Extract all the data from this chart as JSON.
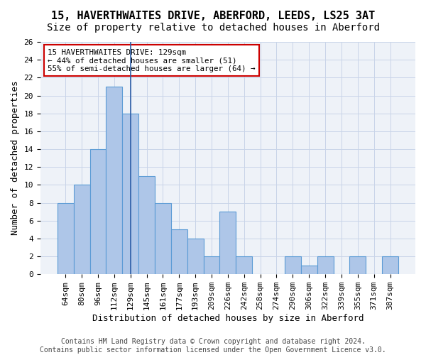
{
  "title1": "15, HAVERTHWAITES DRIVE, ABERFORD, LEEDS, LS25 3AT",
  "title2": "Size of property relative to detached houses in Aberford",
  "xlabel": "Distribution of detached houses by size in Aberford",
  "ylabel": "Number of detached properties",
  "bins": [
    "64sqm",
    "80sqm",
    "96sqm",
    "112sqm",
    "129sqm",
    "145sqm",
    "161sqm",
    "177sqm",
    "193sqm",
    "209sqm",
    "226sqm",
    "242sqm",
    "258sqm",
    "274sqm",
    "290sqm",
    "306sqm",
    "322sqm",
    "339sqm",
    "355sqm",
    "371sqm",
    "387sqm"
  ],
  "values": [
    8,
    10,
    14,
    21,
    18,
    11,
    8,
    5,
    4,
    2,
    7,
    2,
    0,
    0,
    2,
    1,
    2,
    0,
    2,
    0,
    2
  ],
  "bar_color": "#aec6e8",
  "bar_edge_color": "#5b9bd5",
  "highlight_line_x_label": "129sqm",
  "highlight_line_color": "#2b5ca6",
  "annotation_text": "15 HAVERTHWAITES DRIVE: 129sqm\n← 44% of detached houses are smaller (51)\n55% of semi-detached houses are larger (64) →",
  "annotation_box_color": "#ffffff",
  "annotation_box_edge_color": "#cc0000",
  "ylim": [
    0,
    26
  ],
  "yticks": [
    0,
    2,
    4,
    6,
    8,
    10,
    12,
    14,
    16,
    18,
    20,
    22,
    24,
    26
  ],
  "grid_color": "#c8d4e8",
  "bg_color": "#eef2f8",
  "footer": "Contains HM Land Registry data © Crown copyright and database right 2024.\nContains public sector information licensed under the Open Government Licence v3.0.",
  "title1_fontsize": 11,
  "title2_fontsize": 10,
  "xlabel_fontsize": 9,
  "ylabel_fontsize": 9,
  "tick_fontsize": 8,
  "footer_fontsize": 7
}
